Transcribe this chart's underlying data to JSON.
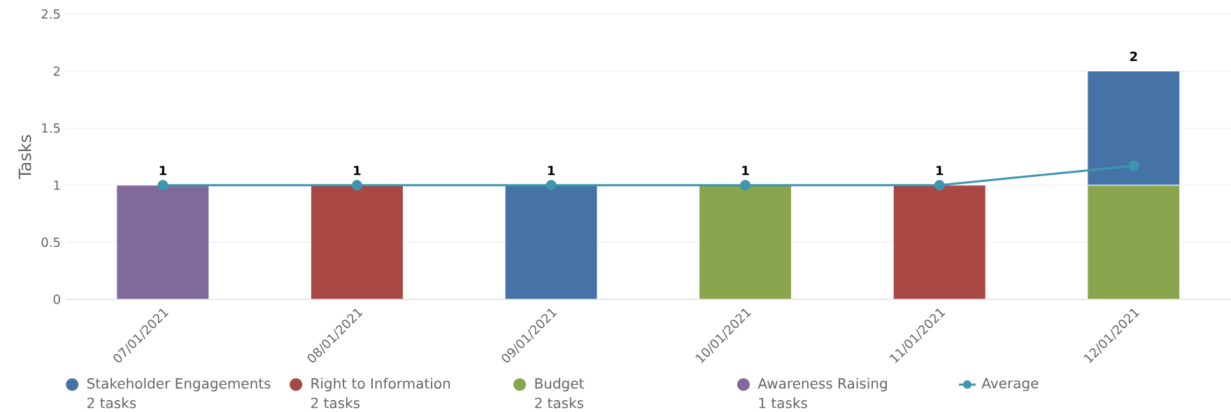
{
  "chart_data": {
    "type": "bar",
    "stacked": true,
    "ylabel": "Tasks",
    "categories": [
      "07/01/2021",
      "08/01/2021",
      "09/01/2021",
      "10/01/2021",
      "11/01/2021",
      "12/01/2021"
    ],
    "series": [
      {
        "name": "Awareness Raising",
        "color": "#80699b",
        "values": [
          1,
          0,
          0,
          0,
          0,
          0
        ]
      },
      {
        "name": "Budget",
        "color": "#89a54e",
        "values": [
          0,
          0,
          0,
          1,
          0,
          1
        ]
      },
      {
        "name": "Right to Information",
        "color": "#a84744",
        "values": [
          0,
          1,
          0,
          0,
          1,
          0
        ]
      },
      {
        "name": "Stakeholder Engagements",
        "color": "#4673a7",
        "values": [
          0,
          0,
          1,
          0,
          0,
          1
        ]
      },
      {
        "name": "Average",
        "type": "line",
        "color": "#3d96ae",
        "marker": "circle",
        "values": [
          1,
          1,
          1,
          1,
          1,
          1.17
        ]
      }
    ],
    "totals": [
      "1",
      "1",
      "1",
      "1",
      "1",
      "2"
    ],
    "annotations": [
      "2 tasks",
      "2 tasks",
      "2 tasks",
      "1 tasks"
    ],
    "ylim": [
      0,
      2.5
    ],
    "yticks": [
      0,
      0.5,
      1,
      1.5,
      2,
      2.5
    ],
    "grid": "y",
    "legend": "bottom"
  }
}
